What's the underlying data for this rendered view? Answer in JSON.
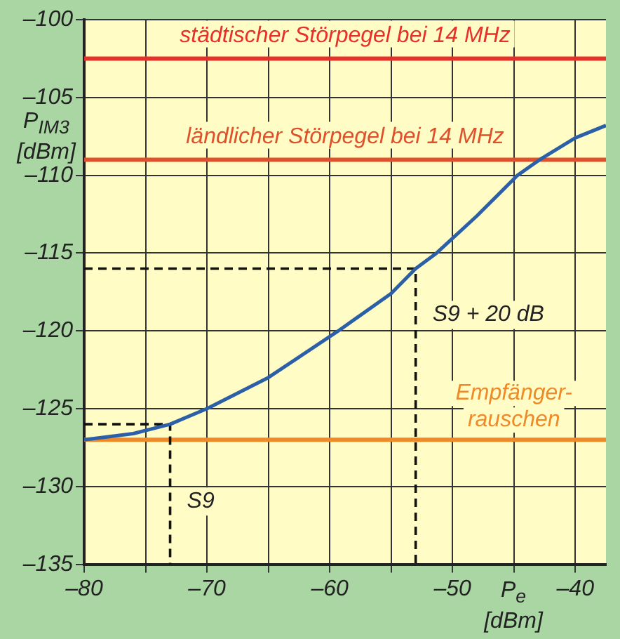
{
  "chart_data": {
    "type": "line",
    "xlabel": "P$_{e}$ [dBm]",
    "ylabel": "P$_{IM3}$ [dBm]",
    "x": [
      -80,
      -76,
      -73,
      -70,
      -65,
      -59.3,
      -55,
      -53,
      -51.3,
      -48,
      -44.7,
      -42.9,
      -40,
      -37.5
    ],
    "series": [
      {
        "color": "#2b5fa8",
        "values": [
          -127,
          -126.6,
          -126,
          -125,
          -123,
          -120,
          -117.6,
          -116,
          -115,
          -112.6,
          -110,
          -109,
          -107.6,
          -106.8
        ]
      },
      {
        "type": "line",
        "color": "#111111",
        "line_style": "dashed",
        "x": [
          -80,
          -73,
          -73
        ],
        "values": [
          -126,
          -126,
          -135
        ]
      },
      {
        "type": "line",
        "color": "#111111",
        "line_style": "dashed",
        "x": [
          -80,
          -53,
          -53
        ],
        "values": [
          -116,
          -116,
          -135
        ]
      }
    ],
    "xlim": [
      -80,
      -37.5
    ],
    "ylim": [
      -135,
      -100
    ],
    "xticks": [
      {
        "value": -80,
        "label": "–80"
      },
      {
        "value": -75,
        "label": null
      },
      {
        "value": -70,
        "label": "–70"
      },
      {
        "value": -65,
        "label": null
      },
      {
        "value": -60,
        "label": "–60"
      },
      {
        "value": -55,
        "label": null
      },
      {
        "value": -50,
        "label": "–50"
      },
      {
        "value": -45,
        "label": null
      },
      {
        "value": -40,
        "label": "–40"
      }
    ],
    "yticks": [
      {
        "value": -135,
        "label": "–135"
      },
      {
        "value": -130,
        "label": "–130"
      },
      {
        "value": -125,
        "label": "–125"
      },
      {
        "value": -120,
        "label": "–120"
      },
      {
        "value": -115,
        "label": "–115"
      },
      {
        "value": -110,
        "label": "–110"
      },
      {
        "value": -105,
        "label": "–105"
      },
      {
        "value": -100,
        "label": "–100"
      }
    ],
    "grid": true,
    "marker": "none",
    "line_style": "solid",
    "ref_lines": [
      {
        "axis": "y",
        "value": -102.5,
        "label": "städtischer Störpegel bei 14 MHz",
        "color": "#e8302a"
      },
      {
        "axis": "y",
        "value": -109,
        "label": "ländlicher Störpegel bei 14 MHz",
        "color": "#e0502a"
      },
      {
        "axis": "y",
        "value": -127,
        "label": "Empfänger-\nrauschen",
        "color": "#f08a28"
      }
    ],
    "annotations": [
      {
        "text": "S9",
        "x": -73,
        "y": -126
      },
      {
        "text": "S9 + 20 dB",
        "x": -53,
        "y": -116
      }
    ]
  }
}
